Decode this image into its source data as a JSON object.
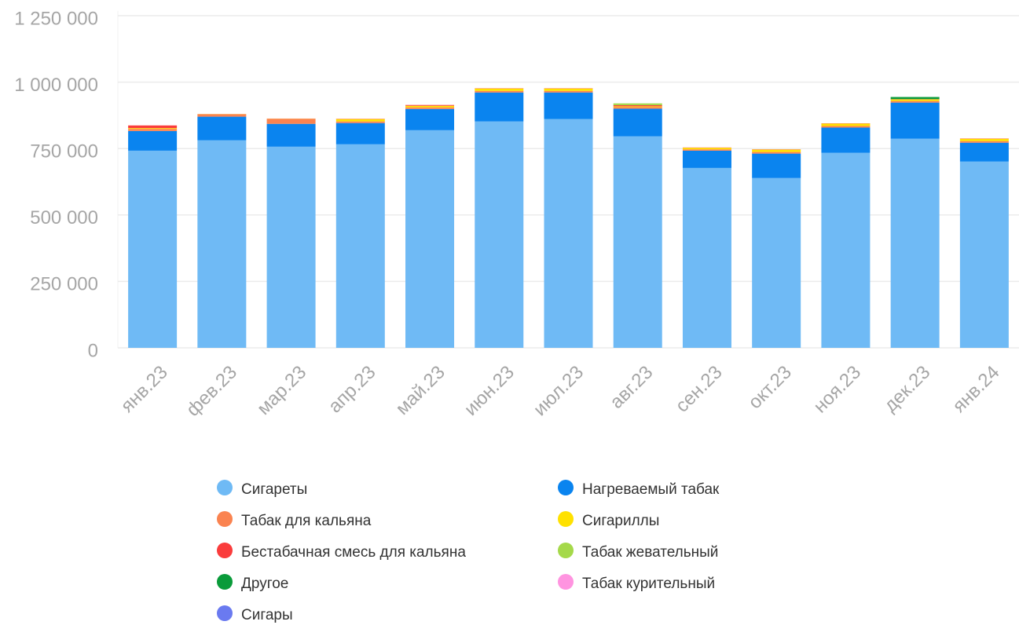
{
  "chart_data": {
    "type": "stacked_bar",
    "categories": [
      "янв.23",
      "фев.23",
      "мар.23",
      "апр.23",
      "май.23",
      "июн.23",
      "июл.23",
      "авг.23",
      "сен.23",
      "окт.23",
      "ноя.23",
      "дек.23",
      "янв.24"
    ],
    "series": [
      {
        "name": "Сигареты",
        "color": "#6fbaf5",
        "values": [
          742000,
          781000,
          757000,
          766000,
          819000,
          852000,
          861000,
          796000,
          677000,
          639000,
          734000,
          787000,
          701000
        ]
      },
      {
        "name": "Нагреваемый табак",
        "color": "#0a84ef",
        "values": [
          74000,
          89000,
          86000,
          80000,
          80000,
          109000,
          100000,
          104000,
          65000,
          92000,
          95000,
          136000,
          71000
        ]
      },
      {
        "name": "Табак для кальяна",
        "color": "#fa8350",
        "values": [
          8000,
          8000,
          18000,
          6000,
          6000,
          6000,
          6000,
          6000,
          5000,
          6000,
          6000,
          6000,
          6000
        ]
      },
      {
        "name": "Сигариллы",
        "color": "#ffe100",
        "values": [
          3000,
          1000,
          1000,
          9000,
          6000,
          9000,
          9000,
          3000,
          6000,
          9000,
          9000,
          6000,
          9000
        ]
      },
      {
        "name": "Бестабачная смесь для кальяна",
        "color": "#fa3c3c",
        "values": [
          10000,
          1000,
          1000,
          1000,
          3000,
          1000,
          1000,
          4000,
          1000,
          1000,
          1000,
          1000,
          1000
        ]
      },
      {
        "name": "Табак жевательный",
        "color": "#a5d94a",
        "values": [
          0,
          0,
          0,
          0,
          0,
          0,
          0,
          7000,
          0,
          0,
          0,
          0,
          0
        ]
      },
      {
        "name": "Другое",
        "color": "#0a9b3a",
        "values": [
          0,
          0,
          0,
          0,
          0,
          0,
          0,
          0,
          0,
          0,
          0,
          8000,
          0
        ]
      },
      {
        "name": "Табак курительный",
        "color": "#ff94e0",
        "values": [
          0,
          0,
          0,
          0,
          0,
          0,
          0,
          0,
          0,
          0,
          0,
          0,
          0
        ]
      },
      {
        "name": "Сигары",
        "color": "#6a7af0",
        "values": [
          0,
          0,
          0,
          0,
          0,
          0,
          0,
          0,
          0,
          0,
          0,
          0,
          0
        ]
      }
    ],
    "ylim": [
      0,
      1250000
    ],
    "yticks": [
      0,
      {
        "value": 250000,
        "label": "250 000"
      },
      {
        "value": 500000,
        "label": "500 000"
      },
      {
        "value": 750000,
        "label": "750 000"
      },
      {
        "value": 1000000,
        "label": "1 000 000"
      },
      {
        "value": 1250000,
        "label": "1 250 000"
      }
    ],
    "grid": true
  }
}
